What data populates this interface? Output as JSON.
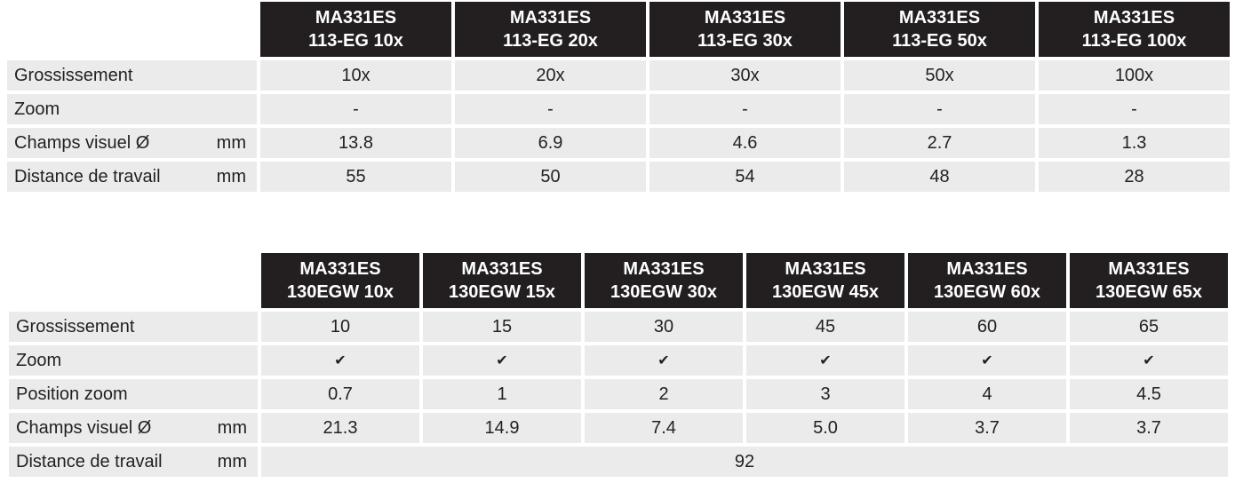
{
  "tables": [
    {
      "columns": [
        {
          "line1": "MA331ES",
          "line2": "113-EG 10x"
        },
        {
          "line1": "MA331ES",
          "line2": "113-EG 20x"
        },
        {
          "line1": "MA331ES",
          "line2": "113-EG 30x"
        },
        {
          "line1": "MA331ES",
          "line2": "113-EG 50x"
        },
        {
          "line1": "MA331ES",
          "line2": "113-EG 100x"
        }
      ],
      "rows": [
        {
          "label": "Grossissement",
          "cells": [
            "10x",
            "20x",
            "30x",
            "50x",
            "100x"
          ]
        },
        {
          "label": "Zoom",
          "cells": [
            "-",
            "-",
            "-",
            "-",
            "-"
          ]
        },
        {
          "label": "Champs visuel Ø",
          "unit": "mm",
          "cells": [
            "13.8",
            "6.9",
            "4.6",
            "2.7",
            "1.3"
          ]
        },
        {
          "label": "Distance de travail",
          "unit": "mm",
          "cells": [
            "55",
            "50",
            "54",
            "48",
            "28"
          ]
        }
      ]
    },
    {
      "columns": [
        {
          "line1": "MA331ES",
          "line2": "130EGW 10x"
        },
        {
          "line1": "MA331ES",
          "line2": "130EGW 15x"
        },
        {
          "line1": "MA331ES",
          "line2": "130EGW 30x"
        },
        {
          "line1": "MA331ES",
          "line2": "130EGW 45x"
        },
        {
          "line1": "MA331ES",
          "line2": "130EGW 60x"
        },
        {
          "line1": "MA331ES",
          "line2": "130EGW 65x"
        }
      ],
      "rows": [
        {
          "label": "Grossissement",
          "cells": [
            "10",
            "15",
            "30",
            "45",
            "60",
            "65"
          ]
        },
        {
          "label": "Zoom",
          "cells": [
            "✔",
            "✔",
            "✔",
            "✔",
            "✔",
            "✔"
          ]
        },
        {
          "label": "Position zoom",
          "cells": [
            "0.7",
            "1",
            "2",
            "3",
            "4",
            "4.5"
          ]
        },
        {
          "label": "Champs visuel Ø",
          "unit": "mm",
          "cells": [
            "21.3",
            "14.9",
            "7.4",
            "5.0",
            "3.7",
            "3.7"
          ]
        },
        {
          "label": "Distance de travail",
          "unit": "mm",
          "cells": [
            "92"
          ]
        }
      ]
    }
  ]
}
